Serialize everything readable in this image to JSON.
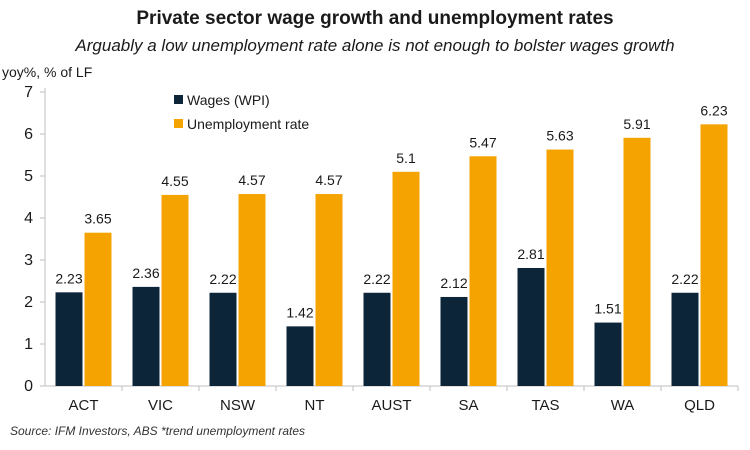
{
  "chart_data": {
    "type": "bar",
    "title": "Private sector wage growth and unemployment rates",
    "subtitle": "Arguably a low unemployment rate alone is not enough to bolster wages growth",
    "ylabel": "yoy%, % of LF",
    "xlabel": "",
    "ylim": [
      0,
      7
    ],
    "yticks": [
      0,
      1,
      2,
      3,
      4,
      5,
      6,
      7
    ],
    "grid": false,
    "legend_position": "top-left",
    "categories": [
      "ACT",
      "VIC",
      "NSW",
      "NT",
      "AUST",
      "SA",
      "TAS",
      "WA",
      "QLD"
    ],
    "series": [
      {
        "name": "Wages (WPI)",
        "color": "#0d2538",
        "values": [
          2.23,
          2.36,
          2.22,
          1.42,
          2.22,
          2.12,
          2.81,
          1.51,
          2.22
        ]
      },
      {
        "name": "Unemployment rate",
        "color": "#f5a300",
        "values": [
          3.65,
          4.55,
          4.57,
          4.57,
          5.1,
          5.47,
          5.63,
          5.91,
          6.23
        ]
      }
    ],
    "source": "Source: IFM Investors, ABS *trend unemployment rates"
  }
}
